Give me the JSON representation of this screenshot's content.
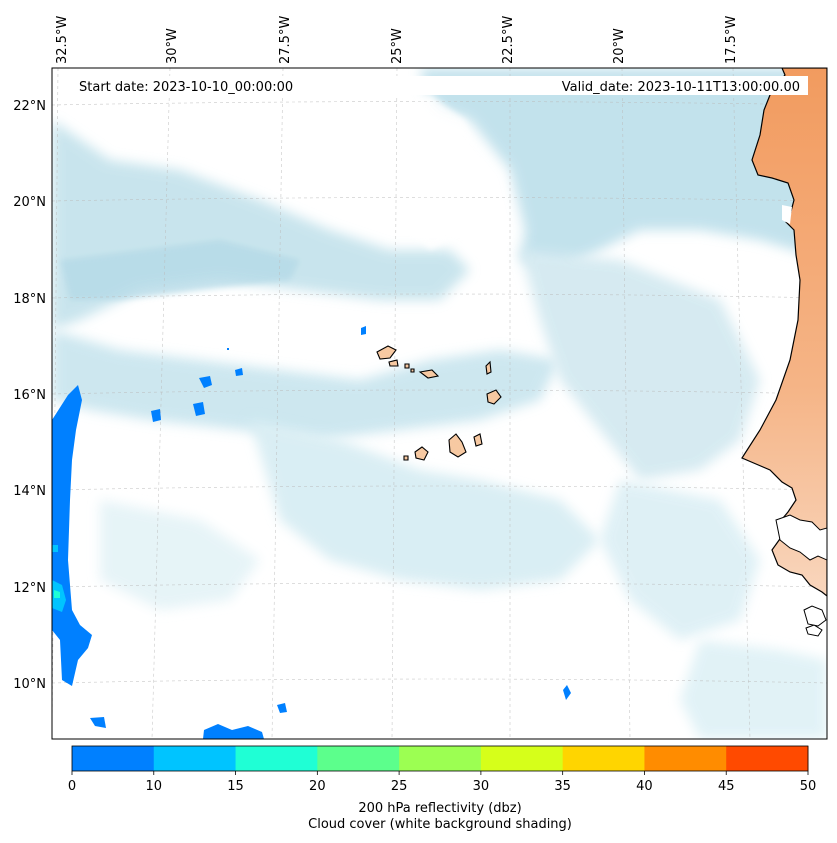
{
  "header": {
    "start_date": "Start date: 2023-10-10_00:00:00",
    "valid_date": "Valid_date: 2023-10-11T13:00:00.00"
  },
  "longitude_labels": [
    "32.5°W",
    "30°W",
    "27.5°W",
    "25°W",
    "22.5°W",
    "20°W",
    "17.5°W"
  ],
  "latitude_labels": [
    "22°N",
    "20°N",
    "18°N",
    "16°N",
    "14°N",
    "12°N",
    "10°N"
  ],
  "colorbar": {
    "ticks": [
      "0",
      "10",
      "15",
      "20",
      "25",
      "30",
      "35",
      "40",
      "45",
      "50"
    ],
    "colors": [
      "#0080ff",
      "#00c4ff",
      "#1fffd5",
      "#5cff8c",
      "#9cff52",
      "#d6ff1a",
      "#ffd500",
      "#ff8c00",
      "#ff4a00"
    ],
    "label_line1": "200 hPa reflectivity (dbz)",
    "label_line2": "Cloud cover (white background shading)"
  },
  "palette": {
    "cloud": "#add8e6",
    "land": "#f4a36c",
    "islands": "#f7c9a2",
    "coast": "#000000"
  }
}
